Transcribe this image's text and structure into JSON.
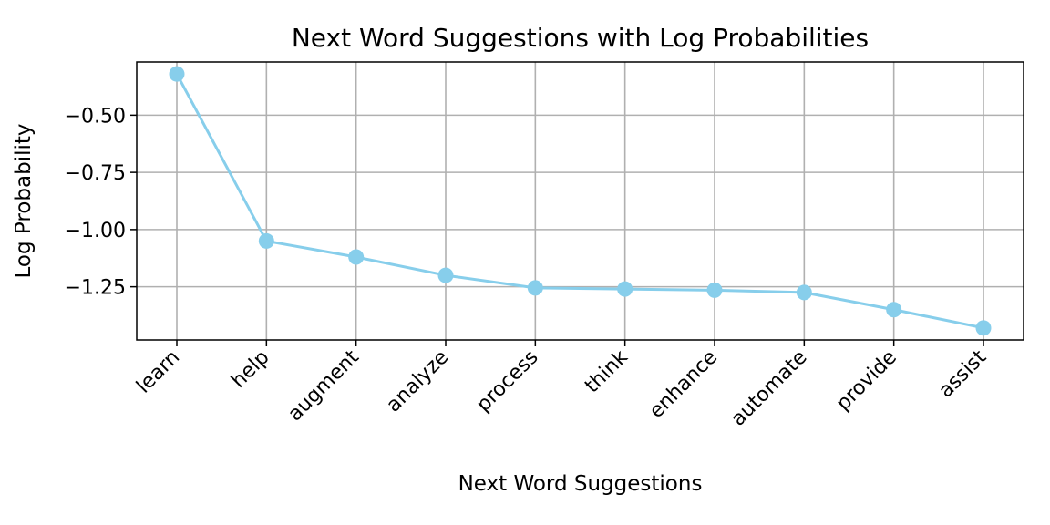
{
  "chart_data": {
    "type": "line",
    "title": "Next Word Suggestions with Log Probabilities",
    "xlabel": "Next Word Suggestions",
    "ylabel": "Log Probability",
    "categories": [
      "learn",
      "help",
      "augment",
      "analyze",
      "process",
      "think",
      "enhance",
      "automate",
      "provide",
      "assist"
    ],
    "values": [
      -0.32,
      -1.05,
      -1.12,
      -1.2,
      -1.255,
      -1.26,
      -1.265,
      -1.275,
      -1.35,
      -1.43
    ],
    "y_ticks": [
      -0.5,
      -0.75,
      -1.0,
      -1.25
    ],
    "y_tick_labels": [
      "−0.50",
      "−0.75",
      "−1.00",
      "−1.25"
    ],
    "ylim": [
      -1.4825,
      -0.2675
    ],
    "grid": true,
    "line_color": "#87ceeb",
    "marker": "circle"
  }
}
